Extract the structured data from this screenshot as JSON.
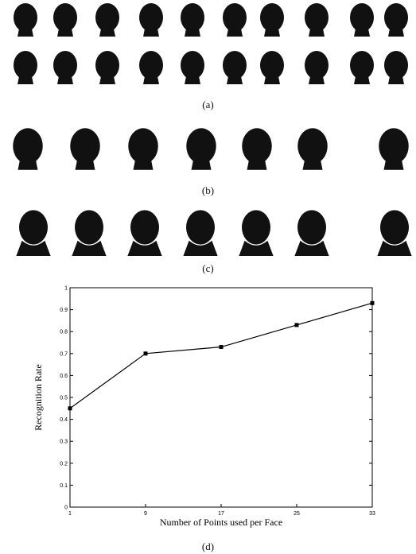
{
  "panels": {
    "a": {
      "caption": "(a)"
    },
    "b": {
      "caption": "(b)"
    },
    "c": {
      "caption": "(c)"
    },
    "d": {
      "caption": "(d)"
    }
  },
  "chart_data": {
    "type": "line",
    "title": "",
    "xlabel": "Number of Points used per Face",
    "ylabel": "Recognition Rate",
    "x": [
      1,
      9,
      17,
      25,
      33
    ],
    "series": [
      {
        "values": [
          0.45,
          0.7,
          0.73,
          0.83,
          0.93
        ]
      }
    ],
    "xticks": [
      "1",
      "9",
      "17",
      "25",
      "33"
    ],
    "yticks": [
      "0",
      "0.1",
      "0.2",
      "0.3",
      "0.4",
      "0.5",
      "0.6",
      "0.7",
      "0.8",
      "0.9",
      "1"
    ],
    "xlim": [
      1,
      33
    ],
    "ylim": [
      0,
      1
    ],
    "marker": "square",
    "grid": false,
    "colors": {
      "line": "#000000",
      "heads": "#111111"
    }
  }
}
